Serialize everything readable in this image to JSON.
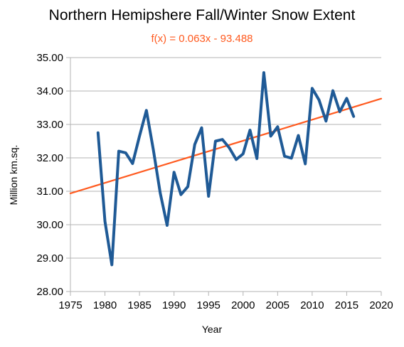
{
  "title": "Northern Hemipshere Fall/Winter Snow Extent",
  "chart_data": {
    "type": "line",
    "title": "Northern Hemipshere Fall/Winter Snow Extent",
    "xlabel": "Year",
    "ylabel": "Million km.sq.",
    "xlim": [
      1975,
      2020
    ],
    "ylim": [
      28,
      35
    ],
    "x_ticks": [
      "1975",
      "1980",
      "1985",
      "1990",
      "1995",
      "2000",
      "2005",
      "2010",
      "2015",
      "2020"
    ],
    "y_ticks": [
      "28.00",
      "29.00",
      "30.00",
      "31.00",
      "32.00",
      "33.00",
      "34.00",
      "35.00"
    ],
    "grid": "horizontal",
    "legend": "none",
    "trendline": {
      "equation": "f(x) = 0.063x - 93.488",
      "slope": 0.063,
      "intercept": -93.488,
      "color": "#ff5a1f"
    },
    "series": [
      {
        "color": "#1f5a96",
        "x": [
          1979,
          1980,
          1981,
          1982,
          1983,
          1984,
          1985,
          1986,
          1987,
          1988,
          1989,
          1990,
          1991,
          1992,
          1993,
          1994,
          1995,
          1996,
          1997,
          1998,
          1999,
          2000,
          2001,
          2002,
          2003,
          2004,
          2005,
          2006,
          2007,
          2008,
          2009,
          2010,
          2011,
          2012,
          2013,
          2014,
          2015,
          2016
        ],
        "y": [
          32.75,
          30.1,
          28.8,
          32.2,
          32.15,
          31.83,
          32.65,
          33.42,
          32.25,
          30.95,
          29.98,
          31.57,
          30.9,
          31.14,
          32.4,
          32.9,
          30.85,
          32.5,
          32.55,
          32.3,
          31.95,
          32.12,
          32.83,
          31.98,
          34.55,
          32.65,
          32.93,
          32.05,
          31.99,
          32.67,
          31.82,
          34.08,
          33.73,
          33.1,
          34.01,
          33.38,
          33.78,
          33.24
        ]
      }
    ]
  }
}
